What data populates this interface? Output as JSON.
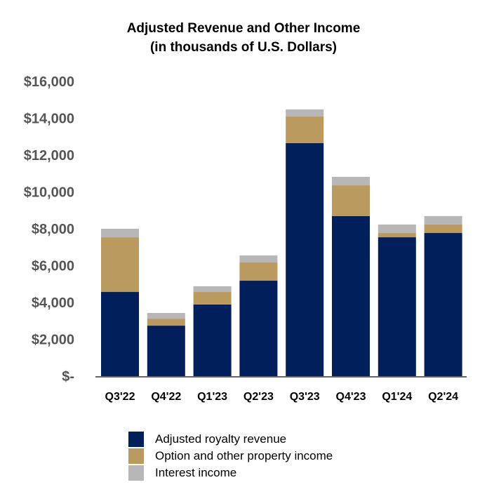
{
  "chart_data": {
    "type": "bar",
    "stacked": true,
    "title": "Adjusted Revenue and Other Income",
    "subtitle": "(in thousands of U.S. Dollars)",
    "categories": [
      "Q3'22",
      "Q4'22",
      "Q1'23",
      "Q2'23",
      "Q3'23",
      "Q4'23",
      "Q1'24",
      "Q2'24"
    ],
    "series": [
      {
        "name": "Adjusted royalty revenue",
        "color": "#001f5b",
        "values": [
          4570,
          2740,
          3890,
          5180,
          12650,
          8690,
          7540,
          7770
        ]
      },
      {
        "name": "Option and other property income",
        "color": "#bb9a60",
        "values": [
          2970,
          380,
          680,
          990,
          1450,
          1670,
          230,
          460
        ]
      },
      {
        "name": "Interest income",
        "color": "#b7b7b7",
        "values": [
          460,
          310,
          310,
          380,
          380,
          460,
          460,
          460
        ]
      }
    ],
    "ylim": [
      0,
      16000
    ],
    "yticks": [
      0,
      2000,
      4000,
      6000,
      8000,
      10000,
      12000,
      14000,
      16000
    ],
    "ytick_labels": [
      "$-",
      "$2,000",
      "$4,000",
      "$6,000",
      "$8,000",
      "$10,000",
      "$12,000",
      "$14,000",
      "$16,000"
    ],
    "grid": false,
    "legend_position": "bottom"
  }
}
